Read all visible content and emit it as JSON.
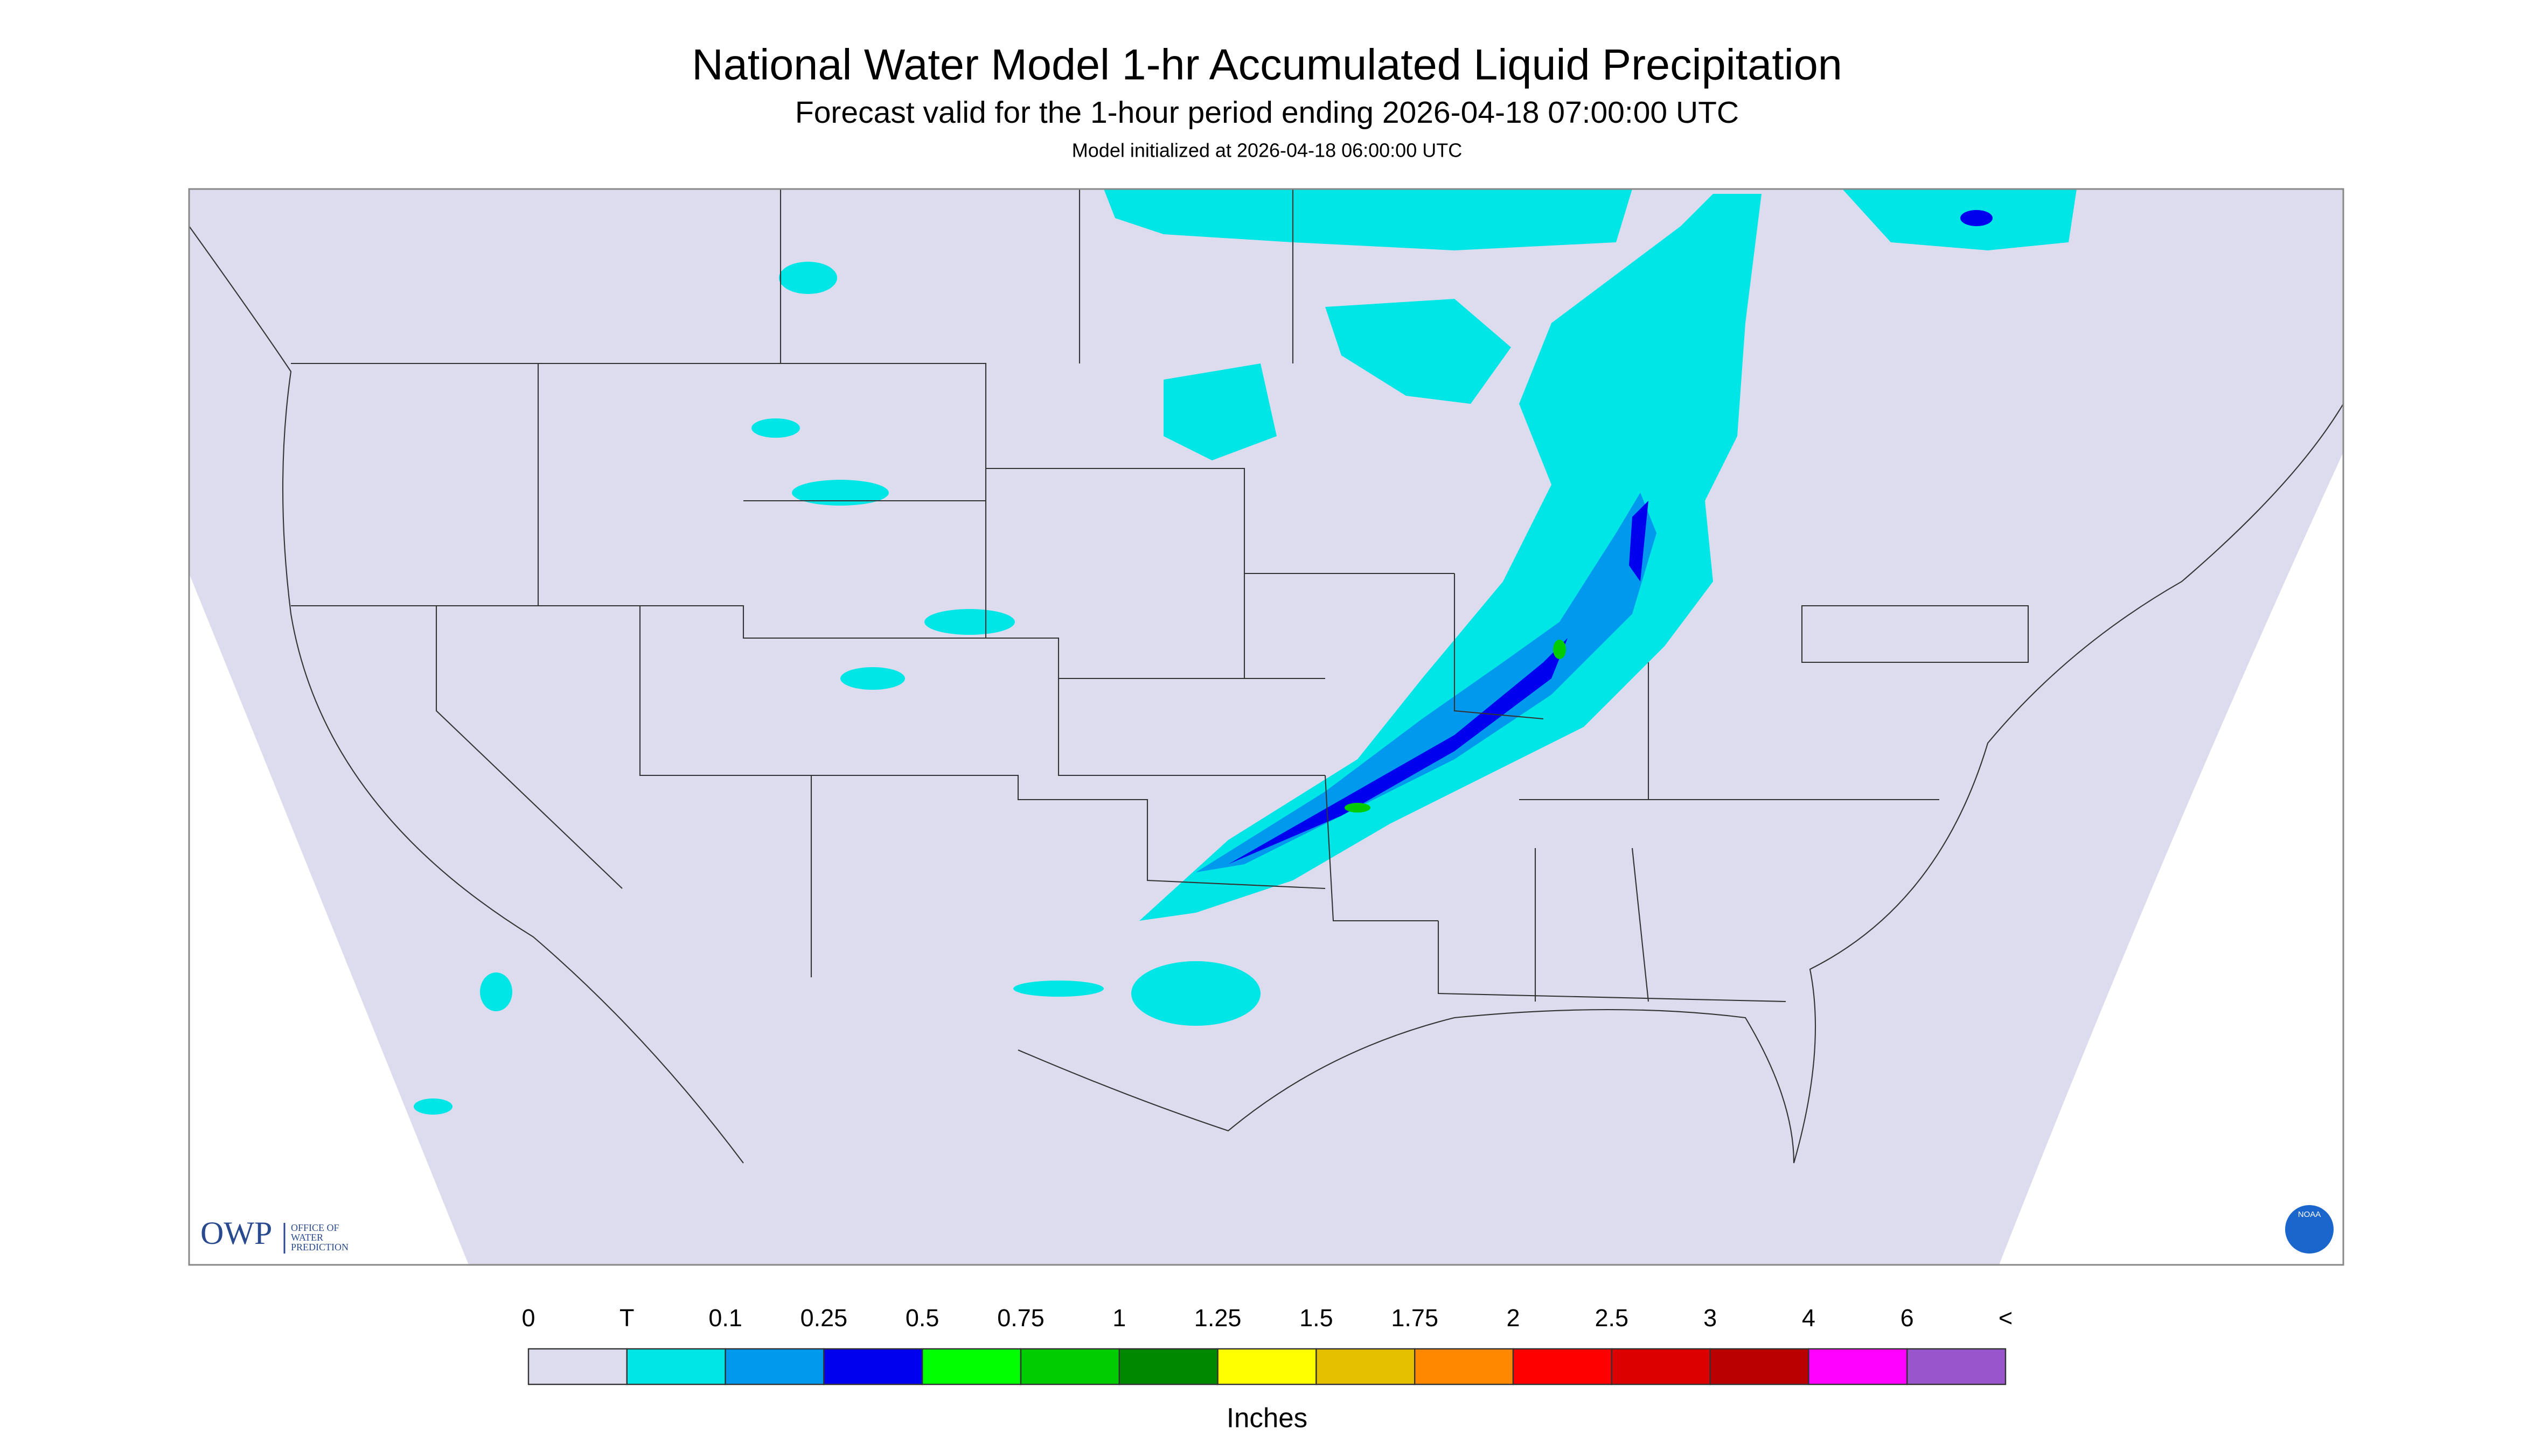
{
  "header": {
    "title": "National Water Model 1-hr Accumulated Liquid Precipitation",
    "subtitle": "Forecast valid for the 1-hour period ending 2026-04-18 07:00:00 UTC",
    "note": "Model initialized at 2026-04-18 06:00:00 UTC"
  },
  "logo": {
    "abbr": "OWP",
    "lines": [
      "OFFICE OF",
      "WATER",
      "PREDICTION"
    ],
    "noaa": "NOAA"
  },
  "legend": {
    "labels": [
      "0",
      "T",
      "0.1",
      "0.25",
      "0.5",
      "0.75",
      "1",
      "1.25",
      "1.5",
      "1.75",
      "2",
      "2.5",
      "3",
      "4",
      "6",
      "<"
    ],
    "colors": [
      "#dcdcee",
      "#00e5e5",
      "#0099ee",
      "#0000ee",
      "#00ff00",
      "#00cc00",
      "#008800",
      "#ffff00",
      "#e5c000",
      "#ff8800",
      "#ff0000",
      "#dd0000",
      "#bb0000",
      "#ff00ff",
      "#9955cc"
    ],
    "unit": "Inches"
  }
}
